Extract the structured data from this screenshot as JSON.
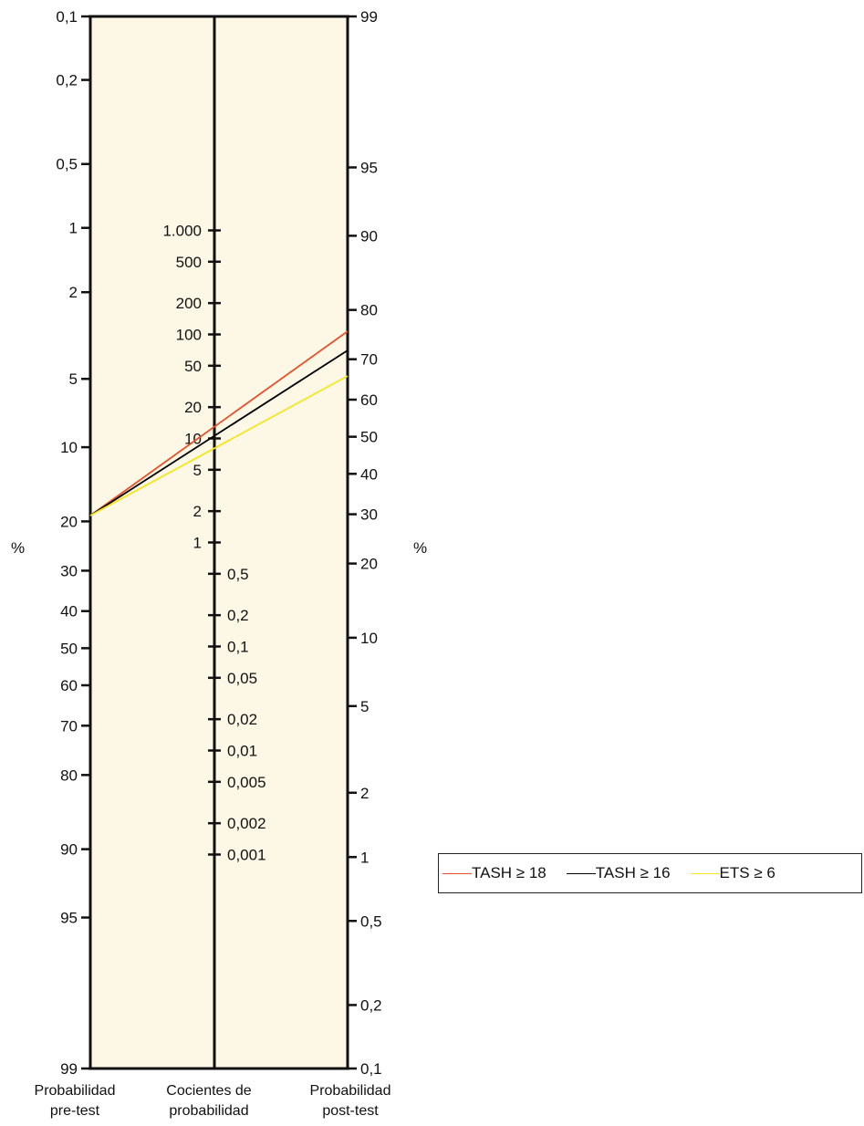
{
  "chart_data": {
    "type": "nomogram",
    "axes": {
      "pre_test": {
        "label_lines": [
          "Probabilidad",
          "pre-test"
        ],
        "ticks": [
          "0,1",
          "0,2",
          "0,5",
          "1",
          "2",
          "5",
          "10",
          "20",
          "30",
          "40",
          "50",
          "60",
          "70",
          "80",
          "90",
          "95",
          "99"
        ]
      },
      "likelihood_ratio": {
        "label_lines": [
          "Cocientes de",
          "probabilidad"
        ],
        "ticks": [
          "1.000",
          "500",
          "200",
          "100",
          "50",
          "20",
          "10",
          "5",
          "2",
          "1",
          "0,5",
          "0,2",
          "0,1",
          "0,05",
          "0,02",
          "0,01",
          "0,005",
          "0,002",
          "0,001"
        ]
      },
      "post_test": {
        "label_lines": [
          "Probabilidad",
          "post-test"
        ],
        "ticks": [
          "99",
          "95",
          "90",
          "80",
          "70",
          "60",
          "50",
          "40",
          "30",
          "20",
          "10",
          "5",
          "2",
          "1",
          "0,5",
          "0,2",
          "0,1"
        ]
      }
    },
    "unit_labels": [
      "%",
      "%"
    ],
    "series": [
      {
        "name": "TASH ≥ 18",
        "pre_test": 19,
        "likelihood_ratio": 14,
        "post_test": 76,
        "color": "#e8502a"
      },
      {
        "name": "TASH ≥ 16",
        "pre_test": 19,
        "likelihood_ratio": 11,
        "post_test": 72,
        "color": "#000000"
      },
      {
        "name": "ETS ≥ 6",
        "pre_test": 19,
        "likelihood_ratio": 8,
        "post_test": 66,
        "color": "#f5e51e"
      }
    ]
  },
  "colors": {
    "panel_fill": "#fdf8e6",
    "axis": "#111111"
  }
}
